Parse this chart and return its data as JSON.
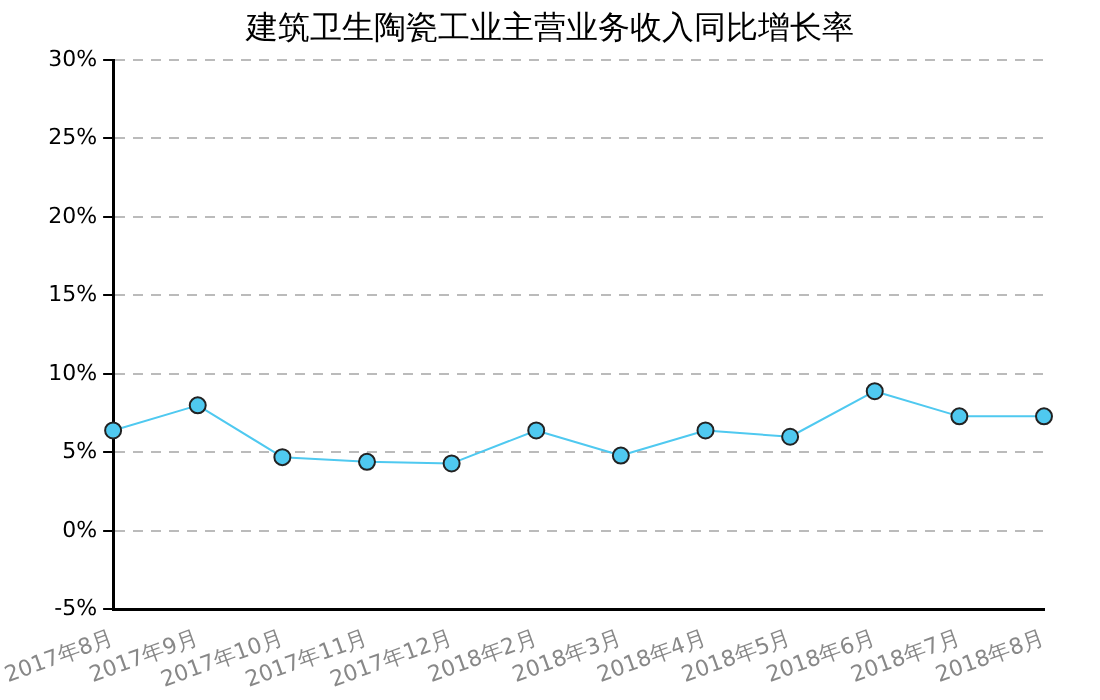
{
  "chart_data": {
    "type": "line",
    "title": "建筑卫生陶瓷工业主营业务收入同比增长率",
    "categories": [
      "2017年8月",
      "2017年9月",
      "2017年10月",
      "2017年11月",
      "2017年12月",
      "2018年2月",
      "2018年3月",
      "2018年4月",
      "2018年5月",
      "2018年6月",
      "2018年7月",
      "2018年8月"
    ],
    "series": [
      {
        "color": "#4fc9f0",
        "values": [
          6.4,
          8.0,
          4.7,
          4.4,
          4.3,
          6.4,
          4.8,
          6.4,
          6.0,
          8.9,
          7.3,
          7.3
        ]
      }
    ],
    "ylim": [
      -5,
      30
    ],
    "yticks": [
      {
        "value": -5,
        "label": "-5%"
      },
      {
        "value": 0,
        "label": "0%"
      },
      {
        "value": 5,
        "label": "5%"
      },
      {
        "value": 10,
        "label": "10%"
      },
      {
        "value": 15,
        "label": "15%"
      },
      {
        "value": 20,
        "label": "20%"
      },
      {
        "value": 25,
        "label": "25%"
      },
      {
        "value": 30,
        "label": "30%"
      }
    ],
    "grid": "y",
    "legend": false,
    "marker": "circle",
    "line_style": "solid"
  }
}
